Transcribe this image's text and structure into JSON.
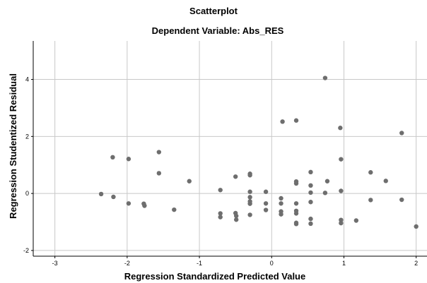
{
  "chart_data": {
    "type": "scatter",
    "title": "Scatterplot",
    "subtitle": "Dependent Variable: Abs_RES",
    "xlabel": "Regression Standardized Predicted Value",
    "ylabel": "Regression Studentized Residual",
    "xlim": [
      -3.3,
      2.15
    ],
    "ylim": [
      -2.2,
      5.35
    ],
    "xticks": [
      -3,
      -2,
      -1,
      0,
      1,
      2
    ],
    "yticks": [
      -2,
      0,
      2,
      4
    ],
    "xtick_labels": [
      "-3",
      "-2",
      "-1",
      "0",
      "1",
      "2"
    ],
    "ytick_labels": [
      "-2",
      "0",
      "2",
      "4"
    ],
    "grid": true,
    "marker_color": "#6e6e6e",
    "grid_color": "#c8c8c8",
    "points": [
      {
        "x": -2.36,
        "y": -0.02
      },
      {
        "x": -2.2,
        "y": 1.27
      },
      {
        "x": -2.19,
        "y": -0.12
      },
      {
        "x": -1.98,
        "y": 1.21
      },
      {
        "x": -1.98,
        "y": -0.35
      },
      {
        "x": -1.77,
        "y": -0.36
      },
      {
        "x": -1.76,
        "y": -0.43
      },
      {
        "x": -1.56,
        "y": 1.45
      },
      {
        "x": -1.56,
        "y": 0.71
      },
      {
        "x": -1.35,
        "y": -0.57
      },
      {
        "x": -1.14,
        "y": 0.43
      },
      {
        "x": -0.71,
        "y": 0.12
      },
      {
        "x": -0.71,
        "y": -0.7
      },
      {
        "x": -0.71,
        "y": -0.83
      },
      {
        "x": -0.5,
        "y": 0.59
      },
      {
        "x": -0.5,
        "y": -0.69
      },
      {
        "x": -0.49,
        "y": -0.79
      },
      {
        "x": -0.49,
        "y": -0.92
      },
      {
        "x": -0.3,
        "y": 0.69
      },
      {
        "x": -0.3,
        "y": 0.64
      },
      {
        "x": -0.3,
        "y": 0.06
      },
      {
        "x": -0.3,
        "y": -0.13
      },
      {
        "x": -0.3,
        "y": -0.28
      },
      {
        "x": -0.3,
        "y": -0.36
      },
      {
        "x": -0.3,
        "y": -0.75
      },
      {
        "x": -0.08,
        "y": 0.06
      },
      {
        "x": -0.08,
        "y": -0.35
      },
      {
        "x": -0.08,
        "y": -0.58
      },
      {
        "x": 0.13,
        "y": -0.17
      },
      {
        "x": 0.13,
        "y": -0.35
      },
      {
        "x": 0.13,
        "y": -0.63
      },
      {
        "x": 0.13,
        "y": -0.73
      },
      {
        "x": 0.15,
        "y": 2.52
      },
      {
        "x": 0.34,
        "y": 2.56
      },
      {
        "x": 0.34,
        "y": 0.42
      },
      {
        "x": 0.34,
        "y": 0.35
      },
      {
        "x": 0.34,
        "y": -0.35
      },
      {
        "x": 0.34,
        "y": -0.61
      },
      {
        "x": 0.34,
        "y": -0.7
      },
      {
        "x": 0.34,
        "y": -1.03
      },
      {
        "x": 0.34,
        "y": -1.07
      },
      {
        "x": 0.54,
        "y": 0.75
      },
      {
        "x": 0.54,
        "y": 0.28
      },
      {
        "x": 0.54,
        "y": 0.03
      },
      {
        "x": 0.54,
        "y": -0.3
      },
      {
        "x": 0.54,
        "y": -0.89
      },
      {
        "x": 0.54,
        "y": -1.06
      },
      {
        "x": 0.74,
        "y": 4.05
      },
      {
        "x": 0.74,
        "y": 0.02
      },
      {
        "x": 0.77,
        "y": 0.43
      },
      {
        "x": 0.95,
        "y": 2.3
      },
      {
        "x": 0.96,
        "y": 1.2
      },
      {
        "x": 0.96,
        "y": 0.09
      },
      {
        "x": 0.96,
        "y": -0.93
      },
      {
        "x": 0.96,
        "y": -1.04
      },
      {
        "x": 1.17,
        "y": -0.95
      },
      {
        "x": 1.37,
        "y": 0.74
      },
      {
        "x": 1.37,
        "y": -0.23
      },
      {
        "x": 1.58,
        "y": 0.44
      },
      {
        "x": 1.8,
        "y": 2.12
      },
      {
        "x": 1.8,
        "y": -0.22
      },
      {
        "x": 2.0,
        "y": -1.16
      }
    ]
  }
}
